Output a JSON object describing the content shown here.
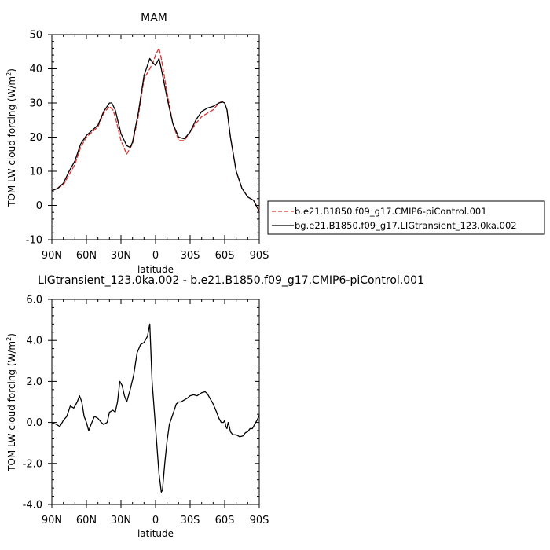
{
  "figure": {
    "top_title": "MAM",
    "bottom_title": "LIGtransient_123.0ka.002 - b.e21.B1850.f09_g17.CMIP6-piControl.001"
  },
  "chart_data": [
    {
      "type": "line",
      "title": "MAM",
      "xlabel": "latitude",
      "ylabel": "TOM LW cloud forcing (W/m²)",
      "xlim": [
        90,
        -90
      ],
      "ylim": [
        -10,
        50
      ],
      "x_ticks": [
        90,
        60,
        30,
        0,
        -30,
        -60,
        -90
      ],
      "x_tick_labels": [
        "90N",
        "60N",
        "30N",
        "0",
        "30S",
        "60S",
        "90S"
      ],
      "y_ticks": [
        -10,
        0,
        10,
        20,
        30,
        40,
        50
      ],
      "y_tick_labels": [
        "-10",
        "0",
        "10",
        "20",
        "30",
        "40",
        "50"
      ],
      "grid": false,
      "legend": "right",
      "series": [
        {
          "name": "b.e21.B1850.f09_g17.CMIP6-piControl.001",
          "color": "#e03030",
          "dash": "dashed",
          "x": [
            90,
            85,
            80,
            75,
            70,
            65,
            60,
            55,
            50,
            45,
            40,
            37,
            35,
            30,
            25,
            20,
            15,
            10,
            5,
            2,
            0,
            -3,
            -5,
            -10,
            -15,
            -20,
            -25,
            -30,
            -35,
            -40,
            -45,
            -50,
            -55,
            -58,
            -60,
            -62,
            -65,
            -70,
            -75,
            -80,
            -85,
            -90
          ],
          "y": [
            4.3,
            5.0,
            6.0,
            9.0,
            12.0,
            17.0,
            20.0,
            21.5,
            23.0,
            27.0,
            29.0,
            28.0,
            26.0,
            19.0,
            15.0,
            18.0,
            26.0,
            37.0,
            40.0,
            42.0,
            44.0,
            46.0,
            43.0,
            33.0,
            24.0,
            19.0,
            19.0,
            21.5,
            24.0,
            26.0,
            27.0,
            28.0,
            30.0,
            30.5,
            30.0,
            28.0,
            20.0,
            10.0,
            5.0,
            2.5,
            1.5,
            -1.5
          ]
        },
        {
          "name": "bg.e21.B1850.f09_g17.LIGtransient_123.0ka.002",
          "color": "#000000",
          "dash": "solid",
          "x": [
            90,
            85,
            80,
            75,
            70,
            65,
            60,
            55,
            50,
            45,
            40,
            38,
            35,
            30,
            25,
            22,
            20,
            15,
            10,
            5,
            3,
            0,
            -3,
            -5,
            -10,
            -15,
            -20,
            -25,
            -30,
            -35,
            -40,
            -45,
            -50,
            -55,
            -58,
            -60,
            -62,
            -65,
            -70,
            -75,
            -80,
            -85,
            -90
          ],
          "y": [
            4.3,
            5.0,
            6.5,
            10.0,
            13.0,
            18.0,
            20.5,
            22.0,
            23.5,
            27.5,
            30.0,
            30.0,
            28.0,
            21.0,
            17.5,
            17.0,
            18.5,
            27.0,
            38.0,
            43.0,
            42.0,
            41.0,
            43.0,
            40.0,
            31.5,
            24.0,
            20.0,
            19.5,
            21.5,
            25.0,
            27.5,
            28.5,
            29.0,
            30.0,
            30.3,
            30.0,
            28.0,
            20.0,
            10.0,
            5.0,
            2.5,
            1.5,
            -1.8
          ]
        }
      ]
    },
    {
      "type": "line",
      "title": "LIGtransient_123.0ka.002 - b.e21.B1850.f09_g17.CMIP6-piControl.001",
      "xlabel": "latitude",
      "ylabel": "TOM LW cloud forcing (W/m²)",
      "xlim": [
        90,
        -90
      ],
      "ylim": [
        -4.0,
        6.0
      ],
      "x_ticks": [
        90,
        60,
        30,
        0,
        -30,
        -60,
        -90
      ],
      "x_tick_labels": [
        "90N",
        "60N",
        "30N",
        "0",
        "30S",
        "60S",
        "90S"
      ],
      "y_ticks": [
        -4.0,
        -2.0,
        0.0,
        2.0,
        4.0,
        6.0
      ],
      "y_tick_labels": [
        "-4.0",
        "-2.0",
        "0.0",
        "2.0",
        "4.0",
        "6.0"
      ],
      "grid": false,
      "series": [
        {
          "color": "#000000",
          "dash": "solid",
          "x": [
            90,
            86,
            83,
            80,
            77,
            74,
            71,
            68,
            66,
            64,
            62,
            60,
            58,
            56,
            53,
            50,
            47,
            45,
            42,
            40,
            37,
            35,
            33,
            31,
            29,
            27,
            25,
            22,
            19,
            16,
            13,
            10,
            7,
            5,
            3,
            1,
            -1,
            -3,
            -5,
            -6,
            -8,
            -10,
            -12,
            -15,
            -18,
            -20,
            -22,
            -25,
            -28,
            -30,
            -33,
            -36,
            -40,
            -43,
            -45,
            -48,
            -50,
            -53,
            -55,
            -57,
            -59,
            -60,
            -61,
            -62,
            -63,
            -64,
            -65,
            -67,
            -70,
            -73,
            -76,
            -78,
            -80,
            -82,
            -84,
            -86,
            -88,
            -90
          ],
          "y": [
            0.0,
            -0.1,
            -0.2,
            0.1,
            0.3,
            0.8,
            0.7,
            1.0,
            1.3,
            1.0,
            0.3,
            0.0,
            -0.4,
            -0.1,
            0.3,
            0.2,
            0.0,
            -0.1,
            0.0,
            0.5,
            0.6,
            0.5,
            1.0,
            2.0,
            1.8,
            1.3,
            1.0,
            1.6,
            2.3,
            3.4,
            3.8,
            3.9,
            4.2,
            4.8,
            2.0,
            0.5,
            -1.0,
            -2.5,
            -3.4,
            -3.3,
            -2.0,
            -0.9,
            -0.1,
            0.4,
            0.9,
            1.0,
            1.0,
            1.1,
            1.2,
            1.3,
            1.35,
            1.3,
            1.45,
            1.5,
            1.4,
            1.1,
            0.9,
            0.5,
            0.2,
            0.0,
            0.0,
            0.1,
            -0.2,
            -0.3,
            0.0,
            -0.2,
            -0.45,
            -0.6,
            -0.6,
            -0.7,
            -0.65,
            -0.5,
            -0.45,
            -0.3,
            -0.3,
            -0.1,
            0.1,
            0.35
          ]
        }
      ]
    }
  ]
}
